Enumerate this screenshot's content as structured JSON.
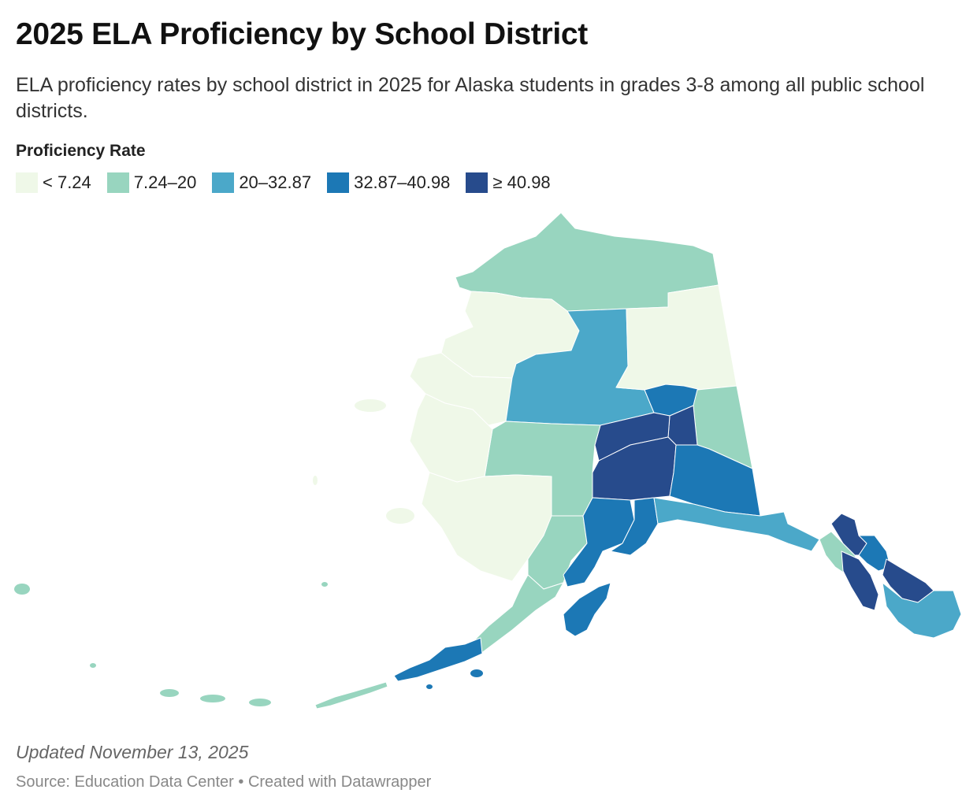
{
  "header": {
    "title": "2025 ELA Proficiency by School District",
    "subtitle": "ELA proficiency rates by school district in 2025 for Alaska students in grades 3-8 among all public school districts."
  },
  "legend": {
    "title": "Proficiency Rate",
    "bins": [
      {
        "label": "< 7.24",
        "color": "#eff8e8"
      },
      {
        "label": "7.24–20",
        "color": "#98d5bf"
      },
      {
        "label": "20–32.87",
        "color": "#4ba8c9"
      },
      {
        "label": "32.87–40.98",
        "color": "#1c78b5"
      },
      {
        "label": "≥ 40.98",
        "color": "#274b8c"
      }
    ]
  },
  "footer": {
    "updated": "Updated November 13, 2025",
    "source": "Source: Education Data Center • Created with Datawrapper"
  }
}
